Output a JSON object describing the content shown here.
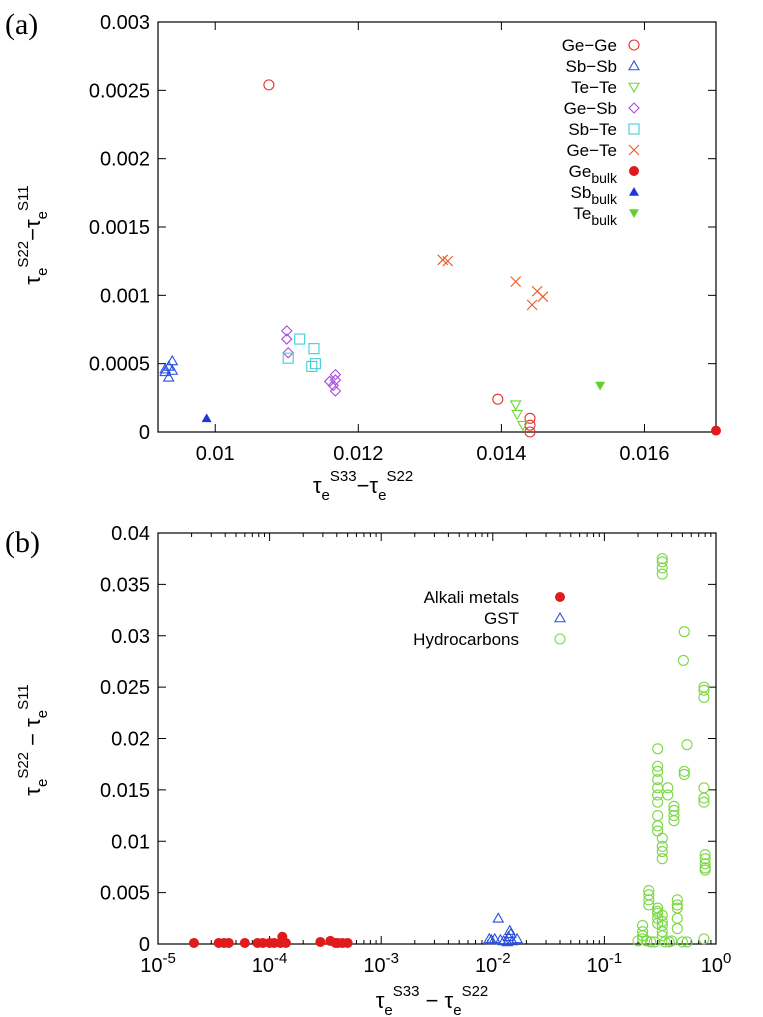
{
  "chart_data": [
    {
      "panel_label": "(a)",
      "type": "scatter",
      "title": "",
      "xlabel": {
        "base": "τ",
        "sub1": "e",
        "sup1": "S33",
        "minus": "−",
        "base2": "τ",
        "sub2": "e",
        "sup2": "S22"
      },
      "ylabel": {
        "base": "τ",
        "sub1": "e",
        "sup1": "S22",
        "minus": "−",
        "base2": "τ",
        "sub2": "e",
        "sup2": "S11"
      },
      "xscale": "linear",
      "xlim": [
        0.0092,
        0.017
      ],
      "ylim": [
        0,
        0.003
      ],
      "xticks": [
        0.01,
        0.012,
        0.014,
        0.016
      ],
      "xtick_labels": [
        "0.01",
        "0.012",
        "0.014",
        "0.016"
      ],
      "yticks": [
        0,
        0.0005,
        0.001,
        0.0015,
        0.002,
        0.0025,
        0.003
      ],
      "ytick_labels": [
        "0",
        "0.0005",
        "0.001",
        "0.0015",
        "0.002",
        "0.0025",
        "0.003"
      ],
      "legend_position": "top-right",
      "series": [
        {
          "name": "Ge-Ge",
          "label": "Ge−Ge",
          "marker": "circle-open",
          "color": "#e8312a",
          "points": [
            [
              0.01075,
              0.00254
            ],
            [
              0.01395,
              0.00024
            ],
            [
              0.0144,
              0.0001
            ],
            [
              0.0144,
              5e-05
            ],
            [
              0.0144,
              0.0
            ]
          ]
        },
        {
          "name": "Sb-Sb",
          "label": "Sb−Sb",
          "marker": "triangle-up-open",
          "color": "#2b4fe0",
          "points": [
            [
              0.0094,
              0.00052
            ],
            [
              0.00935,
              0.00048
            ],
            [
              0.0093,
              0.00046
            ],
            [
              0.0094,
              0.00045
            ],
            [
              0.0093,
              0.00044
            ],
            [
              0.00935,
              0.0004
            ]
          ]
        },
        {
          "name": "Te-Te",
          "label": "Te−Te",
          "marker": "triangle-down-open",
          "color": "#6ed630",
          "points": [
            [
              0.0142,
              0.0002
            ],
            [
              0.01422,
              0.00013
            ],
            [
              0.0143,
              5e-05
            ]
          ]
        },
        {
          "name": "Ge-Sb",
          "label": "Ge−Sb",
          "marker": "diamond-open",
          "color": "#a64dde",
          "points": [
            [
              0.011,
              0.00074
            ],
            [
              0.011,
              0.00068
            ],
            [
              0.01102,
              0.00058
            ],
            [
              0.01168,
              0.00042
            ],
            [
              0.0116,
              0.00037
            ],
            [
              0.01168,
              0.00038
            ],
            [
              0.01165,
              0.00034
            ],
            [
              0.01168,
              0.0003
            ]
          ]
        },
        {
          "name": "Sb-Te",
          "label": "Sb−Te",
          "marker": "square-open",
          "color": "#3fcfd5",
          "points": [
            [
              0.01118,
              0.00068
            ],
            [
              0.01138,
              0.00061
            ],
            [
              0.01102,
              0.00054
            ],
            [
              0.0114,
              0.0005
            ],
            [
              0.01135,
              0.00048
            ]
          ]
        },
        {
          "name": "Ge-Te",
          "label": "Ge−Te",
          "marker": "cross",
          "color": "#e8582a",
          "points": [
            [
              0.01318,
              0.00126
            ],
            [
              0.01325,
              0.00125
            ],
            [
              0.0142,
              0.0011
            ],
            [
              0.0145,
              0.00103
            ],
            [
              0.01458,
              0.00099
            ],
            [
              0.01443,
              0.00093
            ]
          ]
        },
        {
          "name": "Ge_bulk",
          "label": "Ge",
          "label_sub": "bulk",
          "marker": "circle-filled",
          "color": "#e01b1b",
          "points": [
            [
              0.017,
              1e-05
            ]
          ]
        },
        {
          "name": "Sb_bulk",
          "label": "Sb",
          "label_sub": "bulk",
          "marker": "triangle-up-filled",
          "color": "#1f35d6",
          "points": [
            [
              0.00988,
              0.0001
            ]
          ]
        },
        {
          "name": "Te_bulk",
          "label": "Te",
          "label_sub": "bulk",
          "marker": "triangle-down-filled",
          "color": "#5fd12a",
          "points": [
            [
              0.01538,
              0.00034
            ]
          ]
        }
      ]
    },
    {
      "panel_label": "(b)",
      "type": "scatter",
      "title": "",
      "xlabel": {
        "base": "τ",
        "sub1": "e",
        "sup1": "S33",
        "minus": " − ",
        "base2": "τ",
        "sub2": "e",
        "sup2": "S22"
      },
      "ylabel": {
        "base": "τ",
        "sub1": "e",
        "sup1": "S22",
        "minus": " − ",
        "base2": "τ",
        "sub2": "e",
        "sup2": "S11"
      },
      "xscale": "log",
      "xlim": [
        1e-05,
        1
      ],
      "ylim": [
        0,
        0.04
      ],
      "xticks": [
        1e-05,
        0.0001,
        0.001,
        0.01,
        0.1,
        1
      ],
      "xtick_labels": [
        {
          "base": "10",
          "exp": "-5"
        },
        {
          "base": "10",
          "exp": "-4"
        },
        {
          "base": "10",
          "exp": "-3"
        },
        {
          "base": "10",
          "exp": "-2"
        },
        {
          "base": "10",
          "exp": "-1"
        },
        {
          "base": "10",
          "exp": "0"
        }
      ],
      "yticks": [
        0,
        0.005,
        0.01,
        0.015,
        0.02,
        0.025,
        0.03,
        0.035,
        0.04
      ],
      "ytick_labels": [
        "0",
        "0.005",
        "0.01",
        "0.015",
        "0.02",
        "0.025",
        "0.03",
        "0.035",
        "0.04"
      ],
      "legend_position": "top-right",
      "series": [
        {
          "name": "Alkali metals",
          "label": "Alkali metals",
          "marker": "circle-filled",
          "color": "#e01b1b",
          "points": [
            [
              2.1e-05,
              0.0001
            ],
            [
              3.5e-05,
              0.0001
            ],
            [
              3.9e-05,
              0.0001
            ],
            [
              4.3e-05,
              0.0001
            ],
            [
              6e-05,
              0.0001
            ],
            [
              7.8e-05,
              0.0001
            ],
            [
              8.7e-05,
              0.0001
            ],
            [
              0.0001,
              0.0001
            ],
            [
              0.00011,
              0.0001
            ],
            [
              0.000125,
              0.0001
            ],
            [
              0.00013,
              0.0007
            ],
            [
              0.00014,
              0.0001
            ],
            [
              0.000285,
              0.0002
            ],
            [
              0.00035,
              0.0003
            ],
            [
              0.00039,
              0.0001
            ],
            [
              0.00041,
              0.0001
            ],
            [
              0.00045,
              0.0001
            ],
            [
              0.0005,
              0.0001
            ]
          ]
        },
        {
          "name": "GST",
          "label": "GST",
          "marker": "triangle-up-open",
          "color": "#2b4fe0",
          "points": [
            [
              0.0093,
              0.0005
            ],
            [
              0.0097,
              0.0004
            ],
            [
              0.0104,
              0.0005
            ],
            [
              0.0112,
              0.0025
            ],
            [
              0.0117,
              0.0004
            ],
            [
              0.0125,
              0.0003
            ],
            [
              0.0135,
              0.0002
            ],
            [
              0.0142,
              0.0013
            ],
            [
              0.0145,
              0.001
            ],
            [
              0.015,
              0.0003
            ],
            [
              0.0165,
              0.0005
            ],
            [
              0.0138,
              0.0007
            ]
          ]
        },
        {
          "name": "Hydrocarbons",
          "label": "Hydrocarbons",
          "marker": "circle-open",
          "color": "#7ad843",
          "points": [
            [
              0.33,
              0.0375
            ],
            [
              0.33,
              0.0372
            ],
            [
              0.33,
              0.0366
            ],
            [
              0.33,
              0.036
            ],
            [
              0.52,
              0.0304
            ],
            [
              0.51,
              0.0276
            ],
            [
              0.78,
              0.025
            ],
            [
              0.78,
              0.0247
            ],
            [
              0.78,
              0.024
            ],
            [
              0.55,
              0.0194
            ],
            [
              0.3,
              0.019
            ],
            [
              0.3,
              0.0173
            ],
            [
              0.3,
              0.0168
            ],
            [
              0.3,
              0.016
            ],
            [
              0.3,
              0.0152
            ],
            [
              0.3,
              0.0145
            ],
            [
              0.3,
              0.0138
            ],
            [
              0.52,
              0.0168
            ],
            [
              0.52,
              0.0165
            ],
            [
              0.78,
              0.0152
            ],
            [
              0.78,
              0.0142
            ],
            [
              0.78,
              0.0138
            ],
            [
              0.37,
              0.0152
            ],
            [
              0.37,
              0.0145
            ],
            [
              0.42,
              0.0134
            ],
            [
              0.42,
              0.013
            ],
            [
              0.42,
              0.0125
            ],
            [
              0.42,
              0.012
            ],
            [
              0.3,
              0.0125
            ],
            [
              0.3,
              0.0115
            ],
            [
              0.3,
              0.011
            ],
            [
              0.33,
              0.0103
            ],
            [
              0.33,
              0.0095
            ],
            [
              0.33,
              0.009
            ],
            [
              0.33,
              0.0083
            ],
            [
              0.8,
              0.0087
            ],
            [
              0.8,
              0.0083
            ],
            [
              0.8,
              0.0078
            ],
            [
              0.8,
              0.0074
            ],
            [
              0.8,
              0.0072
            ],
            [
              0.25,
              0.0052
            ],
            [
              0.25,
              0.0048
            ],
            [
              0.25,
              0.0043
            ],
            [
              0.25,
              0.0038
            ],
            [
              0.3,
              0.0035
            ],
            [
              0.3,
              0.0032
            ],
            [
              0.3,
              0.003
            ],
            [
              0.3,
              0.0025
            ],
            [
              0.3,
              0.002
            ],
            [
              0.45,
              0.0043
            ],
            [
              0.45,
              0.0038
            ],
            [
              0.45,
              0.0035
            ],
            [
              0.45,
              0.0025
            ],
            [
              0.45,
              0.0015
            ],
            [
              0.33,
              0.0028
            ],
            [
              0.33,
              0.0022
            ],
            [
              0.33,
              0.0018
            ],
            [
              0.33,
              0.0012
            ],
            [
              0.33,
              0.0008
            ],
            [
              0.22,
              0.0018
            ],
            [
              0.22,
              0.0012
            ],
            [
              0.22,
              0.0008
            ],
            [
              0.22,
              0.0005
            ],
            [
              0.24,
              0.0003
            ],
            [
              0.26,
              0.0002
            ],
            [
              0.28,
              0.0002
            ],
            [
              0.35,
              0.0002
            ],
            [
              0.38,
              0.0002
            ],
            [
              0.4,
              0.0003
            ],
            [
              0.5,
              0.0002
            ],
            [
              0.55,
              0.0002
            ],
            [
              0.2,
              0.0003
            ],
            [
              0.78,
              0.0005
            ]
          ]
        }
      ]
    }
  ]
}
